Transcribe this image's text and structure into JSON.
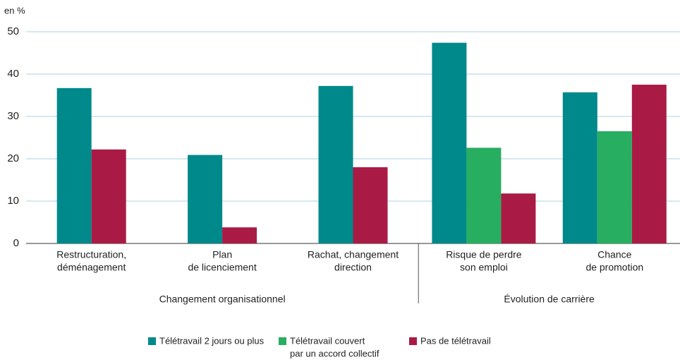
{
  "chart_data": {
    "type": "bar",
    "y_label": "en %",
    "categories": [
      [
        "Restructuration,",
        "déménagement"
      ],
      [
        "Plan",
        "de licenciement"
      ],
      [
        "Rachat, changement",
        "direction"
      ],
      [
        "Risque de perdre",
        "son emploi"
      ],
      [
        "Chance",
        "de promotion"
      ]
    ],
    "groups": [
      {
        "label": "Changement organisationnel",
        "count": 3
      },
      {
        "label": "Évolution de carrière",
        "count": 2
      }
    ],
    "series": [
      {
        "name": [
          "Télétravail 2 jours ou plus"
        ],
        "color": "#00898a",
        "values": [
          36.7,
          20.9,
          37.2,
          47.4,
          35.7
        ]
      },
      {
        "name": [
          "Télétravail couvert",
          "par un accord collectif"
        ],
        "color": "#27ae60",
        "values": [
          null,
          null,
          null,
          22.6,
          26.5
        ]
      },
      {
        "name": [
          "Pas de télétravail"
        ],
        "color": "#a91b45",
        "values": [
          22.2,
          3.8,
          18.0,
          11.8,
          37.5
        ]
      }
    ],
    "ylim": [
      0,
      50
    ],
    "yticks": [
      0,
      10,
      20,
      30,
      40,
      50
    ],
    "grid": true
  }
}
